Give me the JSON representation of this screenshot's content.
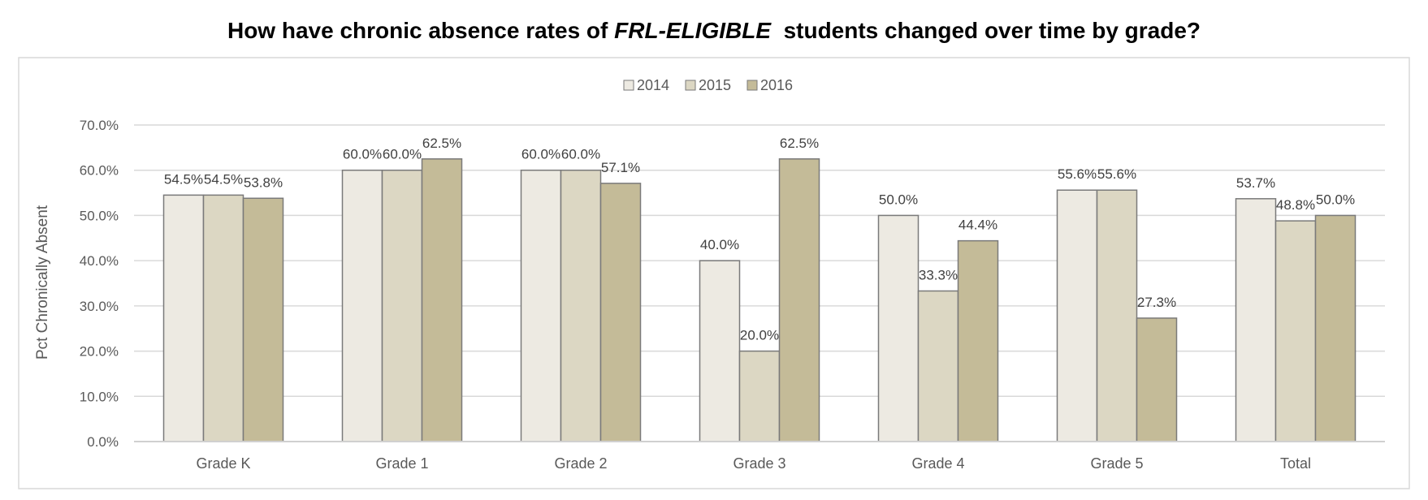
{
  "chart_data": {
    "type": "bar",
    "title": {
      "prefix": "How have chronic absence rates of ",
      "emphasis": "FRL-ELIGIBLE",
      "suffix": "  students changed over time by grade?"
    },
    "ylabel": "Pct Chronically Absent",
    "xlabel": "",
    "ylim": [
      0,
      70
    ],
    "ytick_step": 10,
    "ytick_labels": [
      "0.0%",
      "10.0%",
      "20.0%",
      "30.0%",
      "40.0%",
      "50.0%",
      "60.0%",
      "70.0%"
    ],
    "grid": true,
    "legend_position": "top-center",
    "categories": [
      "Grade K",
      "Grade 1",
      "Grade 2",
      "Grade 3",
      "Grade 4",
      "Grade 5",
      "Total"
    ],
    "series": [
      {
        "name": "2014",
        "color": "#edeae2",
        "values": [
          54.5,
          60.0,
          60.0,
          40.0,
          50.0,
          55.6,
          53.7
        ],
        "labels": [
          "54.5%",
          "60.0%",
          "60.0%",
          "40.0%",
          "50.0%",
          "55.6%",
          "53.7%"
        ]
      },
      {
        "name": "2015",
        "color": "#dcd7c3",
        "values": [
          54.5,
          60.0,
          60.0,
          20.0,
          33.3,
          55.6,
          48.8
        ],
        "labels": [
          "54.5%",
          "60.0%",
          "60.0%",
          "20.0%",
          "33.3%",
          "55.6%",
          "48.8%"
        ]
      },
      {
        "name": "2016",
        "color": "#c4bb98",
        "values": [
          53.8,
          62.5,
          57.1,
          62.5,
          44.4,
          27.3,
          50.0
        ],
        "labels": [
          "53.8%",
          "62.5%",
          "57.1%",
          "62.5%",
          "44.4%",
          "27.3%",
          "50.0%"
        ]
      }
    ]
  }
}
